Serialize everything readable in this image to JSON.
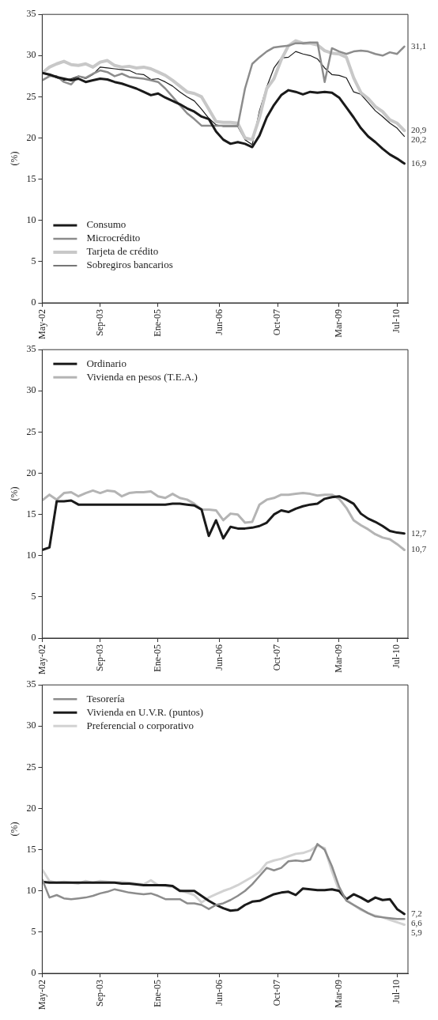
{
  "chart_data": [
    {
      "type": "line",
      "ylabel": "(%)",
      "legend": "bottom left",
      "marker": "none",
      "line_style": "solid",
      "grid": false,
      "x": [
        "2002-05",
        "2002-07",
        "2002-09",
        "2002-11",
        "2003-01",
        "2003-03",
        "2003-05",
        "2003-07",
        "2003-09",
        "2003-11",
        "2004-01",
        "2004-03",
        "2004-05",
        "2004-07",
        "2004-09",
        "2004-11",
        "2005-01",
        "2005-03",
        "2005-05",
        "2005-07",
        "2005-09",
        "2005-11",
        "2006-01",
        "2006-03",
        "2006-05",
        "2006-07",
        "2006-09",
        "2006-11",
        "2007-01",
        "2007-03",
        "2007-05",
        "2007-07",
        "2007-09",
        "2007-11",
        "2008-01",
        "2008-03",
        "2008-05",
        "2008-07",
        "2008-09",
        "2008-11",
        "2009-01",
        "2009-03",
        "2009-05",
        "2009-07",
        "2009-09",
        "2009-11",
        "2010-01",
        "2010-03",
        "2010-05",
        "2010-07",
        "2010-09"
      ],
      "xlim": [
        "2002-05",
        "2010-10"
      ],
      "xticks": [
        {
          "value": "2002-05",
          "label": "May-02"
        },
        {
          "value": "2003-09",
          "label": "Sep-03"
        },
        {
          "value": "2005-01",
          "label": "Ene-05"
        },
        {
          "value": "2006-06",
          "label": "Jun-06"
        },
        {
          "value": "2007-10",
          "label": "Oct-07"
        },
        {
          "value": "2009-03",
          "label": "Mar-09"
        },
        {
          "value": "2010-07",
          "label": "Jul-10"
        }
      ],
      "ylim": [
        0,
        35
      ],
      "yticks": [
        0,
        5,
        10,
        15,
        20,
        25,
        30,
        35
      ],
      "series": [
        {
          "name": "Consumo",
          "color": "#1a1a1a",
          "values": [
            27.9,
            27.7,
            27.4,
            27.2,
            27.0,
            27.2,
            26.8,
            27.0,
            27.2,
            27.1,
            26.8,
            26.6,
            26.3,
            26.0,
            25.6,
            25.2,
            25.4,
            24.9,
            24.5,
            24.1,
            23.6,
            23.2,
            22.6,
            22.3,
            20.8,
            19.8,
            19.3,
            19.5,
            19.3,
            18.9,
            20.3,
            22.5,
            24.0,
            25.2,
            25.8,
            25.6,
            25.3,
            25.6,
            25.5,
            25.6,
            25.5,
            24.9,
            23.7,
            22.5,
            21.2,
            20.2,
            19.5,
            18.7,
            18.0,
            17.5,
            16.9
          ]
        },
        {
          "name": "Microcrédito",
          "color": "#8c8c8c",
          "values": [
            27.0,
            27.5,
            27.5,
            26.8,
            26.5,
            27.5,
            27.3,
            27.8,
            28.2,
            28.0,
            27.5,
            27.8,
            27.4,
            27.3,
            27.2,
            27.0,
            26.8,
            26.0,
            25.0,
            24.0,
            23.0,
            22.3,
            21.5,
            21.5,
            21.5,
            21.5,
            21.5,
            21.5,
            26.0,
            29.0,
            29.8,
            30.5,
            31.0,
            31.1,
            31.2,
            31.5,
            31.5,
            31.6,
            31.6,
            26.8,
            30.9,
            30.5,
            30.2,
            30.5,
            30.6,
            30.5,
            30.2,
            30.0,
            30.4,
            30.2,
            31.1
          ]
        },
        {
          "name": "Tarjeta de crédito",
          "color": "#c8c8c8",
          "values": [
            27.9,
            28.6,
            29.0,
            29.3,
            28.9,
            28.8,
            29.0,
            28.6,
            29.2,
            29.4,
            28.8,
            28.6,
            28.7,
            28.5,
            28.6,
            28.4,
            28.0,
            27.6,
            27.0,
            26.3,
            25.6,
            25.4,
            25.0,
            23.5,
            22.0,
            21.9,
            21.9,
            21.8,
            20.0,
            19.8,
            22.5,
            26.0,
            27.2,
            29.5,
            31.2,
            31.8,
            31.5,
            31.5,
            31.3,
            30.6,
            30.3,
            30.2,
            29.8,
            27.3,
            25.5,
            24.8,
            23.8,
            23.2,
            22.2,
            21.8,
            20.9
          ]
        },
        {
          "name": "Sobregiros bancarios",
          "color": "#1a1a1a",
          "values": [
            27.9,
            27.6,
            27.3,
            27.0,
            27.2,
            27.5,
            27.2,
            27.7,
            28.6,
            28.5,
            28.4,
            28.3,
            28.2,
            27.8,
            27.7,
            27.1,
            27.2,
            26.8,
            26.3,
            25.6,
            25.0,
            24.5,
            23.5,
            22.4,
            21.6,
            21.4,
            21.4,
            21.4,
            19.8,
            19.2,
            23.3,
            26.2,
            28.5,
            29.7,
            29.8,
            30.5,
            30.2,
            30.0,
            29.6,
            28.5,
            27.7,
            27.6,
            27.3,
            25.6,
            25.3,
            24.3,
            23.3,
            22.6,
            21.8,
            21.2,
            20.2
          ]
        }
      ],
      "annotations": [
        {
          "text": "31,1",
          "x": "2010-09",
          "y": 31.1
        },
        {
          "text": "20,9",
          "x": "2010-09",
          "y": 20.9
        },
        {
          "text": "20,2",
          "x": "2010-09",
          "y": 20.2
        },
        {
          "text": "16,9",
          "x": "2010-09",
          "y": 16.9
        }
      ]
    },
    {
      "type": "line",
      "ylabel": "(%)",
      "legend": "top left",
      "marker": "none",
      "line_style": "solid",
      "grid": false,
      "x": [
        "2002-05",
        "2002-07",
        "2002-09",
        "2002-11",
        "2003-01",
        "2003-03",
        "2003-05",
        "2003-07",
        "2003-09",
        "2003-11",
        "2004-01",
        "2004-03",
        "2004-05",
        "2004-07",
        "2004-09",
        "2004-11",
        "2005-01",
        "2005-03",
        "2005-05",
        "2005-07",
        "2005-09",
        "2005-11",
        "2006-01",
        "2006-03",
        "2006-05",
        "2006-07",
        "2006-09",
        "2006-11",
        "2007-01",
        "2007-03",
        "2007-05",
        "2007-07",
        "2007-09",
        "2007-11",
        "2008-01",
        "2008-03",
        "2008-05",
        "2008-07",
        "2008-09",
        "2008-11",
        "2009-01",
        "2009-03",
        "2009-05",
        "2009-07",
        "2009-09",
        "2009-11",
        "2010-01",
        "2010-03",
        "2010-05",
        "2010-07",
        "2010-09"
      ],
      "xlim": [
        "2002-05",
        "2010-10"
      ],
      "xticks": [
        {
          "value": "2002-05",
          "label": "May-02"
        },
        {
          "value": "2003-09",
          "label": "Sep-03"
        },
        {
          "value": "2005-01",
          "label": "Ene-05"
        },
        {
          "value": "2006-06",
          "label": "Jun-06"
        },
        {
          "value": "2007-10",
          "label": "Oct-07"
        },
        {
          "value": "2009-03",
          "label": "Mar-09"
        },
        {
          "value": "2010-07",
          "label": "Jul-10"
        }
      ],
      "ylim": [
        0,
        35
      ],
      "yticks": [
        0,
        5,
        10,
        15,
        20,
        25,
        30,
        35
      ],
      "series": [
        {
          "name": "Ordinario",
          "color": "#1a1a1a",
          "values": [
            10.7,
            11.0,
            16.6,
            16.6,
            16.7,
            16.2,
            16.2,
            16.2,
            16.2,
            16.2,
            16.2,
            16.2,
            16.2,
            16.2,
            16.2,
            16.2,
            16.2,
            16.2,
            16.3,
            16.3,
            16.2,
            16.1,
            15.6,
            12.4,
            14.3,
            12.1,
            13.5,
            13.3,
            13.3,
            13.4,
            13.6,
            14.0,
            15.0,
            15.5,
            15.3,
            15.7,
            16.0,
            16.2,
            16.3,
            16.9,
            17.1,
            17.2,
            16.8,
            16.3,
            15.1,
            14.5,
            14.1,
            13.6,
            13.0,
            12.8,
            12.7
          ]
        },
        {
          "name": "Vivienda en pesos (T.E.A.)",
          "color": "#b4b4b4",
          "values": [
            16.7,
            17.4,
            16.8,
            17.6,
            17.7,
            17.2,
            17.6,
            17.9,
            17.6,
            17.9,
            17.8,
            17.2,
            17.6,
            17.7,
            17.7,
            17.8,
            17.2,
            17.0,
            17.5,
            17.0,
            16.8,
            16.3,
            15.6,
            15.6,
            15.5,
            14.3,
            15.1,
            15.0,
            14.0,
            14.1,
            16.2,
            16.8,
            17.0,
            17.4,
            17.4,
            17.5,
            17.6,
            17.5,
            17.3,
            17.4,
            17.4,
            16.9,
            15.8,
            14.3,
            13.7,
            13.2,
            12.6,
            12.2,
            12.0,
            11.4,
            10.7
          ]
        }
      ],
      "annotations": [
        {
          "text": "12,7",
          "x": "2010-09",
          "y": 12.7
        },
        {
          "text": "10,7",
          "x": "2010-09",
          "y": 10.7
        }
      ]
    },
    {
      "type": "line",
      "ylabel": "(%)",
      "legend": "top left",
      "marker": "none",
      "line_style": "solid",
      "grid": false,
      "x": [
        "2002-05",
        "2002-07",
        "2002-09",
        "2002-11",
        "2003-01",
        "2003-03",
        "2003-05",
        "2003-07",
        "2003-09",
        "2003-11",
        "2004-01",
        "2004-03",
        "2004-05",
        "2004-07",
        "2004-09",
        "2004-11",
        "2005-01",
        "2005-03",
        "2005-05",
        "2005-07",
        "2005-09",
        "2005-11",
        "2006-01",
        "2006-03",
        "2006-05",
        "2006-07",
        "2006-09",
        "2006-11",
        "2007-01",
        "2007-03",
        "2007-05",
        "2007-07",
        "2007-09",
        "2007-11",
        "2008-01",
        "2008-03",
        "2008-05",
        "2008-07",
        "2008-09",
        "2008-11",
        "2009-01",
        "2009-03",
        "2009-05",
        "2009-07",
        "2009-09",
        "2009-11",
        "2010-01",
        "2010-03",
        "2010-05",
        "2010-07",
        "2010-09"
      ],
      "xlim": [
        "2002-05",
        "2010-10"
      ],
      "xticks": [
        {
          "value": "2002-05",
          "label": "May-02"
        },
        {
          "value": "2003-09",
          "label": "Sep-03"
        },
        {
          "value": "2005-01",
          "label": "Ene-05"
        },
        {
          "value": "2006-06",
          "label": "Jun-06"
        },
        {
          "value": "2007-10",
          "label": "Oct-07"
        },
        {
          "value": "2009-03",
          "label": "Mar-09"
        },
        {
          "value": "2010-07",
          "label": "Jul-10"
        }
      ],
      "ylim": [
        0,
        35
      ],
      "yticks": [
        0,
        5,
        10,
        15,
        20,
        25,
        30,
        35
      ],
      "series": [
        {
          "name": "Tesorería",
          "color": "#8c8c8c",
          "values": [
            11.4,
            9.2,
            9.5,
            9.1,
            9.0,
            9.1,
            9.2,
            9.4,
            9.7,
            9.9,
            10.2,
            10.0,
            9.8,
            9.7,
            9.6,
            9.7,
            9.4,
            9.0,
            9.0,
            9.0,
            8.5,
            8.5,
            8.3,
            7.8,
            8.3,
            8.5,
            8.9,
            9.4,
            10.0,
            10.8,
            11.8,
            12.8,
            12.5,
            12.8,
            13.6,
            13.7,
            13.6,
            13.8,
            15.7,
            15.0,
            13.0,
            10.5,
            8.8,
            8.3,
            7.8,
            7.3,
            6.9,
            6.8,
            6.7,
            6.6,
            6.6
          ]
        },
        {
          "name": "Vivienda en U.V.R. (puntos)",
          "color": "#1a1a1a",
          "values": [
            11.1,
            11.0,
            11.0,
            11.0,
            11.0,
            11.0,
            11.0,
            11.0,
            11.0,
            11.0,
            11.0,
            10.9,
            10.9,
            10.8,
            10.7,
            10.7,
            10.7,
            10.7,
            10.6,
            10.0,
            10.0,
            10.0,
            9.4,
            8.8,
            8.3,
            7.9,
            7.6,
            7.7,
            8.3,
            8.7,
            8.8,
            9.2,
            9.6,
            9.8,
            9.9,
            9.5,
            10.3,
            10.2,
            10.1,
            10.1,
            10.2,
            10.0,
            9.0,
            9.6,
            9.2,
            8.7,
            9.2,
            8.9,
            9.0,
            7.8,
            7.2
          ]
        },
        {
          "name": "Preferencial o corporativo",
          "color": "#d2d2d2",
          "values": [
            12.6,
            11.2,
            11.0,
            11.1,
            11.0,
            10.9,
            11.2,
            11.0,
            11.2,
            11.1,
            11.0,
            11.1,
            11.0,
            10.9,
            10.8,
            11.3,
            10.7,
            10.6,
            10.5,
            10.1,
            9.8,
            9.5,
            8.6,
            9.2,
            9.6,
            10.0,
            10.3,
            10.7,
            11.2,
            11.7,
            12.3,
            13.4,
            13.7,
            13.9,
            14.2,
            14.5,
            14.6,
            14.9,
            15.5,
            15.2,
            12.4,
            10.0,
            8.9,
            8.3,
            7.7,
            7.3,
            7.0,
            6.8,
            6.5,
            6.2,
            5.9
          ]
        }
      ],
      "annotations": [
        {
          "text": "7,2",
          "x": "2010-09",
          "y": 7.2
        },
        {
          "text": "6,6",
          "x": "2010-09",
          "y": 6.6
        },
        {
          "text": "5,9",
          "x": "2010-09",
          "y": 5.9
        }
      ]
    }
  ]
}
